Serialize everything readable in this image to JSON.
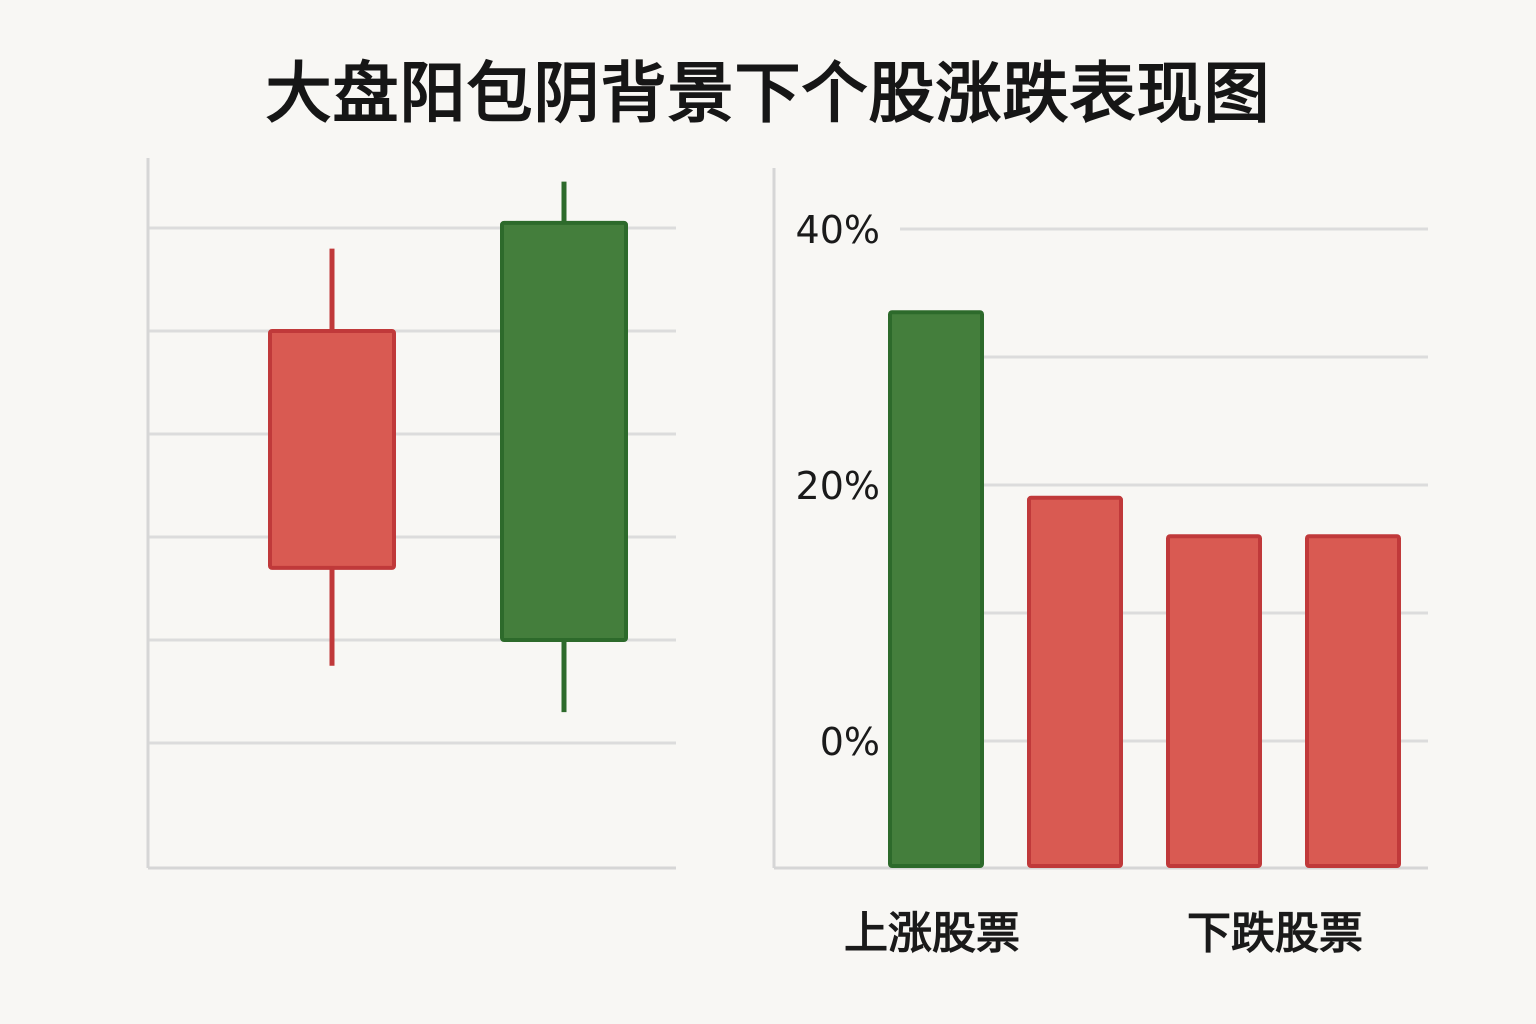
{
  "title": "大盘阳包阴背景下个股涨跌表现图",
  "colors": {
    "background": "#f8f7f4",
    "red_fill": "#d95a52",
    "red_stroke": "#c0393a",
    "green_fill": "#447e3c",
    "green_stroke": "#2d6a2b",
    "grid": "#dcdcdc",
    "axis": "#d6d6d6"
  },
  "chart_data": [
    {
      "type": "candlestick",
      "title": "",
      "xlabel": "",
      "ylabel": "",
      "grid": true,
      "ylim": [
        0,
        5
      ],
      "candles": [
        {
          "open": 4.0,
          "close": 1.7,
          "high": 4.8,
          "low": 0.75,
          "color": "red"
        },
        {
          "open": 1.0,
          "close": 5.05,
          "high": 5.45,
          "low": 0.3,
          "color": "green"
        }
      ]
    },
    {
      "type": "bar",
      "title": "",
      "xlabel": "",
      "ylabel": "",
      "grid": true,
      "ylim": [
        -10,
        40
      ],
      "yticks": [
        0,
        20,
        40
      ],
      "ytick_labels": [
        "0%",
        "20%",
        "40%"
      ],
      "values": [
        33.5,
        19,
        16,
        16
      ],
      "bar_colors": [
        "green",
        "red",
        "red",
        "red"
      ],
      "group_labels": [
        "上涨股票",
        "下跌股票"
      ]
    }
  ]
}
